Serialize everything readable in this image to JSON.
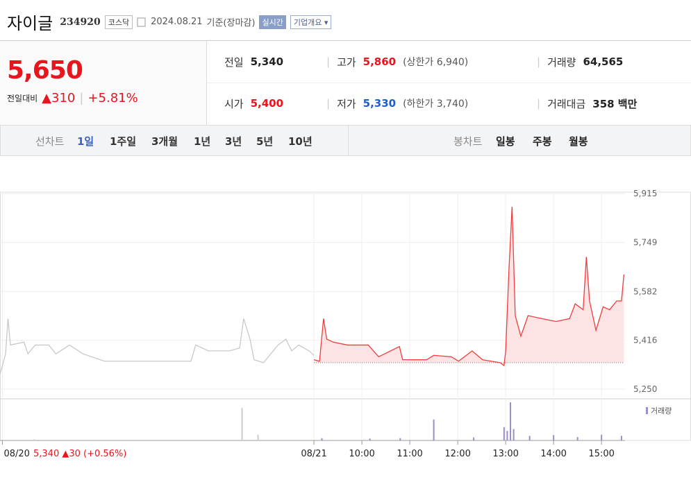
{
  "header": {
    "name": "자이글",
    "code": "234920",
    "market": "코스닥",
    "date": "2024.08.21",
    "basis": "기준(장마감)",
    "realtime": "실시간",
    "company": "기업개요"
  },
  "summary": {
    "price": "5,650",
    "change_label": "전일대비",
    "change_sign": "▲",
    "change": "310",
    "change_pct": "+5.81%",
    "rows": [
      [
        {
          "label": "전일",
          "value": "5,340"
        },
        {
          "label": "고가",
          "value": "5,860",
          "sub_label": "상한가",
          "sub_value": "6,940"
        },
        {
          "label": "거래량",
          "value": "64,565"
        }
      ],
      [
        {
          "label": "시가",
          "value": "5,400"
        },
        {
          "label": "저가",
          "value": "5,330",
          "sub_label": "하한가",
          "sub_value": "3,740"
        },
        {
          "label": "거래대금",
          "value": "358 백만"
        }
      ]
    ]
  },
  "tabs": {
    "line_label": "선차트",
    "line_items": [
      "1일",
      "1주일",
      "3개월",
      "1년",
      "3년",
      "5년",
      "10년"
    ],
    "candle_label": "봉차트",
    "candle_items": [
      "일봉",
      "주봉",
      "월봉"
    ]
  },
  "chart_data": {
    "type": "line",
    "ylim": [
      5217,
      5920
    ],
    "xlim": [
      -393,
      472
    ],
    "baseline": 5340,
    "yticks": [
      {
        "value": 5915,
        "label": "5,915"
      },
      {
        "value": 5749,
        "label": "5,749"
      },
      {
        "value": 5582,
        "label": "5,582"
      },
      {
        "value": 5416,
        "label": "5,416"
      },
      {
        "value": 5250,
        "label": "5,250"
      }
    ],
    "xticks": [
      {
        "value": -390,
        "label": "08/20"
      },
      {
        "value": 0,
        "label": "08/21"
      },
      {
        "value": 60,
        "label": "10:00"
      },
      {
        "value": 120,
        "label": "11:00"
      },
      {
        "value": 180,
        "label": "12:00"
      },
      {
        "value": 240,
        "label": "13:00"
      },
      {
        "value": 300,
        "label": "14:00"
      },
      {
        "value": 360,
        "label": "15:00"
      }
    ],
    "series": [
      {
        "color": "#c8c8c8",
        "x": [
          -393,
          -386,
          -383,
          -380,
          -363,
          -358,
          -349,
          -332,
          -323,
          -306,
          -289,
          -262,
          -219,
          -154,
          -148,
          -132,
          -106,
          -93,
          -88,
          -80,
          -75,
          -63,
          -54,
          -45,
          -35,
          -28,
          -19,
          -6,
          0
        ],
        "values": [
          5300,
          5370,
          5490,
          5400,
          5410,
          5370,
          5400,
          5400,
          5370,
          5400,
          5370,
          5345,
          5345,
          5345,
          5400,
          5380,
          5380,
          5390,
          5490,
          5420,
          5350,
          5340,
          5370,
          5400,
          5420,
          5380,
          5400,
          5380,
          5365
        ]
      },
      {
        "color": "#f03c3c",
        "fill": "#fde3e3",
        "x": [
          0,
          7,
          12,
          16,
          24,
          42,
          68,
          81,
          107,
          111,
          141,
          150,
          172,
          181,
          198,
          211,
          233,
          238,
          240,
          244,
          248,
          252,
          259,
          268,
          285,
          303,
          320,
          327,
          337,
          341,
          345,
          353,
          362,
          370,
          379,
          385,
          388
        ],
        "values": [
          5350,
          5345,
          5490,
          5420,
          5410,
          5400,
          5400,
          5360,
          5395,
          5350,
          5350,
          5365,
          5360,
          5345,
          5380,
          5350,
          5340,
          5330,
          5380,
          5650,
          5870,
          5500,
          5430,
          5500,
          5490,
          5480,
          5490,
          5540,
          5520,
          5700,
          5550,
          5450,
          5530,
          5520,
          5550,
          5550,
          5640
        ]
      }
    ],
    "volume": {
      "name": "거래량",
      "color": "#9b8ec7",
      "ylim": [
        0,
        10000
      ],
      "x": [
        -350,
        -90,
        -70,
        10,
        70,
        108,
        150,
        200,
        238,
        242,
        246,
        250,
        270,
        300,
        330,
        360,
        385
      ],
      "values": [
        300,
        8500,
        1500,
        600,
        500,
        600,
        5500,
        800,
        3500,
        2500,
        10000,
        3000,
        1200,
        1400,
        900,
        1500,
        1200
      ]
    },
    "prev_label": "08/20",
    "prev_close": "5,340",
    "prev_sign": "▲",
    "prev_change": "30",
    "prev_pct": "(+0.56%)"
  }
}
